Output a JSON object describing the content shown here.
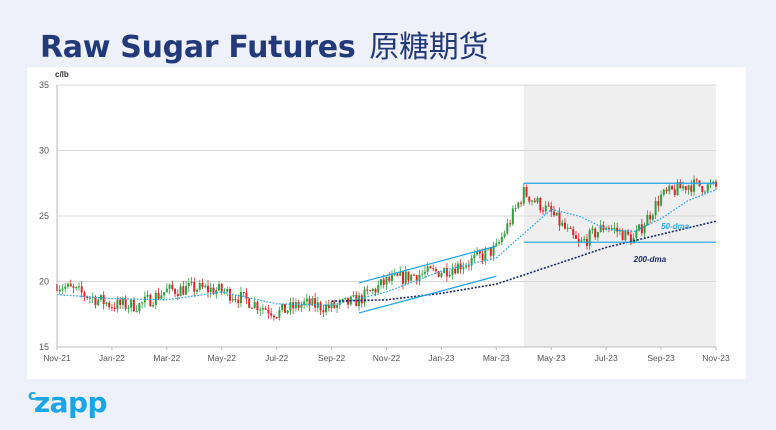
{
  "header": {
    "title_en": "Raw Sugar Futures",
    "title_cn": "原糖期货"
  },
  "brand": {
    "logo_prefix": "c",
    "logo_main": "zapp",
    "color": "#1aa6e6"
  },
  "colors": {
    "title": "#233a7a",
    "page_background": "#eef0fa",
    "candle_up": "#2e9e3e",
    "candle_down": "#d02a2a",
    "channel_lines": "#1aa3e8",
    "ma50": "#2aa9e8",
    "ma200": "#1c2a6b"
  },
  "chart_data": {
    "type": "line",
    "subtype": "candlestick",
    "title": "",
    "ylabel": "c/lb",
    "xlabel": "",
    "ylim": [
      15,
      35
    ],
    "yticks": [
      15,
      20,
      25,
      30,
      35
    ],
    "xlim": [
      "2021-11",
      "2023-11"
    ],
    "x_tick_labels": [
      "Nov-21",
      "Jan-22",
      "Mar-22",
      "May-22",
      "Jul-22",
      "Sep-22",
      "Nov-22",
      "Jan-23",
      "Mar-23",
      "May-23",
      "Jul-23",
      "Sep-23",
      "Nov-23"
    ],
    "grid": "horizontal",
    "shaded_region": {
      "from": "2023-04",
      "to": "2023-11"
    },
    "series": [
      {
        "name": "",
        "kind": "close",
        "x": [
          "2021-11",
          "2021-12",
          "2022-01",
          "2022-02",
          "2022-03",
          "2022-04",
          "2022-05",
          "2022-06",
          "2022-07",
          "2022-08",
          "2022-09",
          "2022-10",
          "2022-11",
          "2022-12",
          "2023-01",
          "2023-02",
          "2023-03",
          "2023-04",
          "2023-05",
          "2023-06",
          "2023-07",
          "2023-08",
          "2023-09",
          "2023-10",
          "2023-11"
        ],
        "y": [
          19.8,
          19.0,
          18.2,
          18.2,
          19.3,
          19.5,
          19.3,
          18.5,
          17.6,
          18.3,
          18.0,
          18.6,
          20.0,
          20.5,
          20.8,
          21.5,
          22.5,
          26.8,
          25.2,
          22.8,
          24.3,
          23.2,
          26.5,
          27.4,
          27.2
        ]
      },
      {
        "name": "50-dma",
        "x": [
          "2021-11",
          "2022-01",
          "2022-03",
          "2022-05",
          "2022-07",
          "2022-09",
          "2022-11",
          "2023-01",
          "2023-03",
          "2023-05",
          "2023-06",
          "2023-07",
          "2023-08",
          "2023-09",
          "2023-10",
          "2023-11"
        ],
        "y": [
          19.0,
          18.7,
          18.6,
          19.2,
          18.3,
          18.2,
          19.2,
          20.8,
          21.8,
          25.5,
          25.0,
          24.0,
          23.8,
          24.8,
          26.2,
          27.0
        ]
      },
      {
        "name": "200-dma",
        "x": [
          "2022-09",
          "2022-11",
          "2023-01",
          "2023-03",
          "2023-05",
          "2023-07",
          "2023-09",
          "2023-11"
        ],
        "y": [
          18.5,
          18.6,
          19.1,
          19.8,
          21.2,
          22.6,
          23.6,
          24.6
        ]
      }
    ],
    "annotations": [
      {
        "type": "channel_line",
        "from": [
          "2022-10",
          19.9
        ],
        "to": [
          "2023-03",
          22.7
        ]
      },
      {
        "type": "channel_line",
        "from": [
          "2022-10",
          17.6
        ],
        "to": [
          "2023-03",
          20.4
        ]
      },
      {
        "type": "horizontal_line",
        "y": 27.5,
        "from": "2023-04",
        "to": "2023-11"
      },
      {
        "type": "horizontal_line",
        "y": 23.0,
        "from": "2023-04",
        "to": "2023-11"
      },
      {
        "type": "label",
        "text": "50-dma",
        "x": "2023-09",
        "y": 24.0
      },
      {
        "type": "label",
        "text": "200-dma",
        "x": "2023-08",
        "y": 21.5
      }
    ]
  }
}
